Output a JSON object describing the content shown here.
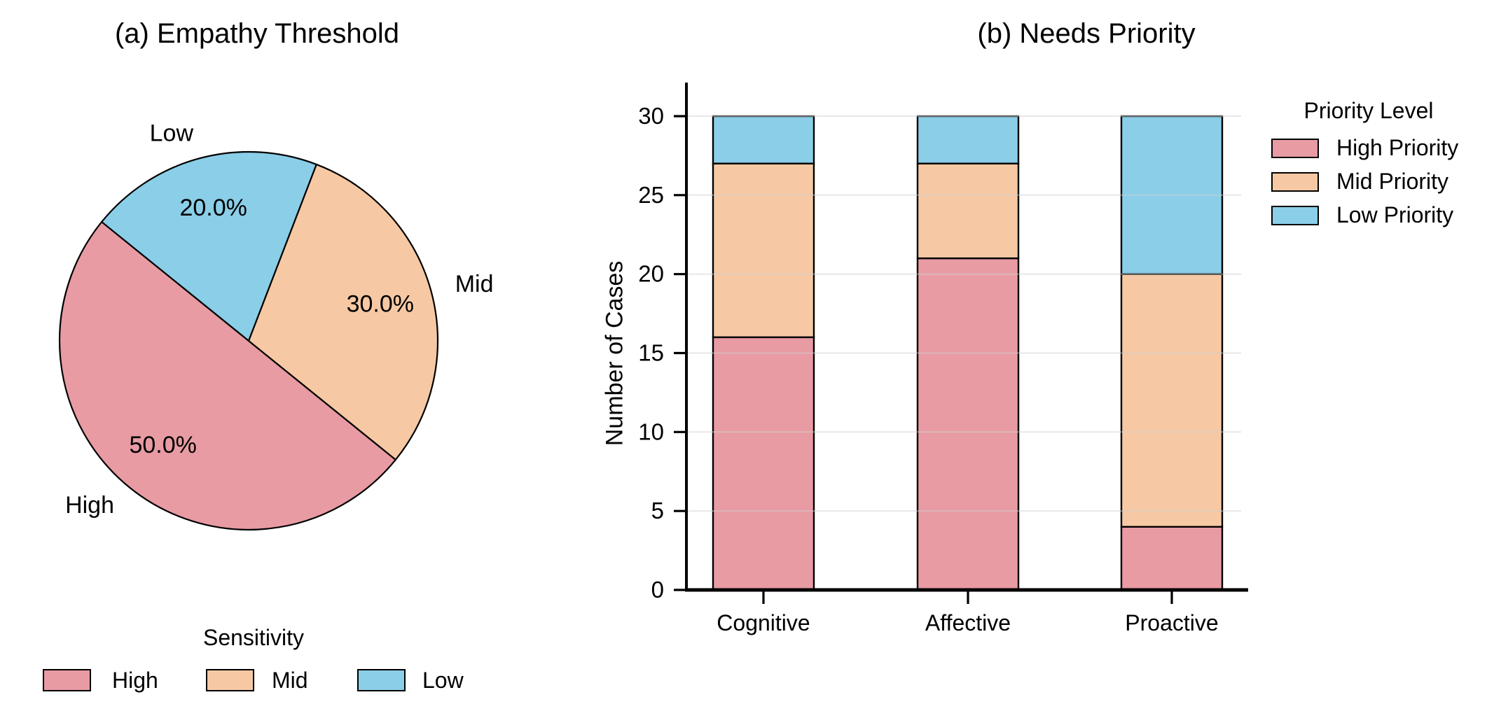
{
  "colors": {
    "background": "#FFFFFF",
    "high": "#E89BA3",
    "mid": "#F6C9A4",
    "low": "#8BCEE8",
    "edge": "#000000",
    "grid": "#E4E4E4",
    "axis": "#000000"
  },
  "chart_data": [
    {
      "type": "pie",
      "title": "(a) Empathy Threshold",
      "labels": [
        "High",
        "Mid",
        "Low"
      ],
      "values": [
        50.0,
        30.0,
        20.0
      ],
      "percent_labels": [
        "50.0%",
        "30.0%",
        "20.0%"
      ],
      "start_angle_deg": 141,
      "direction": "counterclockwise",
      "slice_colors": [
        "#E89BA3",
        "#F6C9A4",
        "#8BCEE8"
      ],
      "legend": {
        "title": "Sensitivity",
        "entries": [
          "High",
          "Mid",
          "Low"
        ],
        "position": "bottom"
      }
    },
    {
      "type": "bar",
      "stacked": true,
      "title": "(b) Needs Priority",
      "categories": [
        "Cognitive",
        "Affective",
        "Proactive"
      ],
      "series": [
        {
          "name": "High Priority",
          "values": [
            16,
            21,
            4
          ],
          "color": "#E89BA3"
        },
        {
          "name": "Mid Priority",
          "values": [
            11,
            6,
            16
          ],
          "color": "#F6C9A4"
        },
        {
          "name": "Low Priority",
          "values": [
            3,
            3,
            10
          ],
          "color": "#8BCEE8"
        }
      ],
      "xlabel": "",
      "ylabel": "Number of Cases",
      "ylim": [
        0,
        30
      ],
      "yticks": [
        0,
        5,
        10,
        15,
        20,
        25,
        30
      ],
      "grid": true,
      "legend": {
        "title": "Priority Level",
        "entries": [
          "High Priority",
          "Mid Priority",
          "Low Priority"
        ],
        "position": "right"
      }
    }
  ]
}
